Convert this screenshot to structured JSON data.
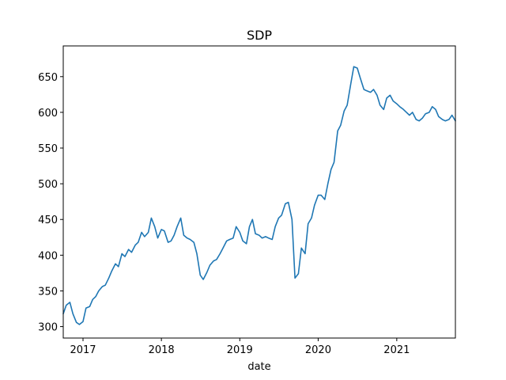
{
  "chart_data": {
    "type": "line",
    "title": "SDP",
    "xlabel": "date",
    "ylabel": "",
    "xlim": [
      "2016-10-01",
      "2021-10-01"
    ],
    "ylim": [
      284,
      693
    ],
    "grid": false,
    "x_ticks": [
      {
        "date": "2017-01-01",
        "label": "2017"
      },
      {
        "date": "2018-01-01",
        "label": "2018"
      },
      {
        "date": "2019-01-01",
        "label": "2019"
      },
      {
        "date": "2020-01-01",
        "label": "2020"
      },
      {
        "date": "2021-01-01",
        "label": "2021"
      }
    ],
    "y_ticks": [
      300,
      350,
      400,
      450,
      500,
      550,
      600,
      650
    ],
    "line_color": "#1f77b4",
    "series": [
      {
        "name": "",
        "x": [
          "2016-10-01",
          "2016-10-15",
          "2016-11-01",
          "2016-11-15",
          "2016-12-01",
          "2016-12-15",
          "2017-01-01",
          "2017-01-15",
          "2017-02-01",
          "2017-02-15",
          "2017-03-01",
          "2017-03-15",
          "2017-04-01",
          "2017-04-15",
          "2017-05-01",
          "2017-05-15",
          "2017-06-01",
          "2017-06-15",
          "2017-07-01",
          "2017-07-15",
          "2017-08-01",
          "2017-08-15",
          "2017-09-01",
          "2017-09-15",
          "2017-10-01",
          "2017-10-15",
          "2017-11-01",
          "2017-11-15",
          "2017-12-01",
          "2017-12-15",
          "2018-01-01",
          "2018-01-15",
          "2018-02-01",
          "2018-02-15",
          "2018-03-01",
          "2018-03-15",
          "2018-04-01",
          "2018-04-15",
          "2018-05-01",
          "2018-05-15",
          "2018-06-01",
          "2018-06-15",
          "2018-07-01",
          "2018-07-15",
          "2018-08-01",
          "2018-08-15",
          "2018-09-01",
          "2018-09-15",
          "2018-10-01",
          "2018-10-15",
          "2018-11-01",
          "2018-11-15",
          "2018-12-01",
          "2018-12-15",
          "2019-01-01",
          "2019-01-15",
          "2019-02-01",
          "2019-02-15",
          "2019-03-01",
          "2019-03-15",
          "2019-04-01",
          "2019-04-15",
          "2019-05-01",
          "2019-05-15",
          "2019-06-01",
          "2019-06-15",
          "2019-07-01",
          "2019-07-15",
          "2019-08-01",
          "2019-08-15",
          "2019-09-01",
          "2019-09-15",
          "2019-10-01",
          "2019-10-15",
          "2019-11-01",
          "2019-11-15",
          "2019-12-01",
          "2019-12-15",
          "2020-01-01",
          "2020-01-15",
          "2020-02-01",
          "2020-02-15",
          "2020-03-01",
          "2020-03-15",
          "2020-04-01",
          "2020-04-15",
          "2020-05-01",
          "2020-05-15",
          "2020-06-01",
          "2020-06-15",
          "2020-07-01",
          "2020-07-15",
          "2020-08-01",
          "2020-08-15",
          "2020-09-01",
          "2020-09-15",
          "2020-10-01",
          "2020-10-15",
          "2020-11-01",
          "2020-11-15",
          "2020-12-01",
          "2020-12-15",
          "2021-01-01",
          "2021-01-15",
          "2021-02-01",
          "2021-02-15",
          "2021-03-01",
          "2021-03-15",
          "2021-04-01",
          "2021-04-15",
          "2021-05-01",
          "2021-05-15",
          "2021-06-01",
          "2021-06-15",
          "2021-07-01",
          "2021-07-15",
          "2021-08-01",
          "2021-08-15",
          "2021-09-01",
          "2021-09-15",
          "2021-10-01"
        ],
        "values": [
          318,
          330,
          334,
          318,
          306,
          303,
          307,
          326,
          328,
          338,
          342,
          350,
          356,
          358,
          368,
          378,
          388,
          384,
          402,
          398,
          408,
          404,
          414,
          418,
          432,
          426,
          432,
          452,
          440,
          424,
          436,
          434,
          418,
          420,
          428,
          440,
          452,
          428,
          424,
          422,
          418,
          402,
          372,
          366,
          376,
          386,
          392,
          394,
          402,
          410,
          420,
          422,
          424,
          440,
          432,
          420,
          416,
          440,
          450,
          430,
          428,
          424,
          426,
          424,
          422,
          440,
          452,
          456,
          472,
          474,
          450,
          368,
          374,
          410,
          402,
          444,
          452,
          470,
          484,
          484,
          478,
          500,
          520,
          530,
          574,
          582,
          602,
          610,
          640,
          664,
          662,
          648,
          632,
          630,
          628,
          632,
          624,
          610,
          604,
          620,
          624,
          616,
          612,
          608,
          604,
          600,
          596,
          600,
          590,
          588,
          592,
          598,
          600,
          608,
          604,
          594,
          590,
          588,
          590,
          596,
          588
        ]
      }
    ]
  }
}
